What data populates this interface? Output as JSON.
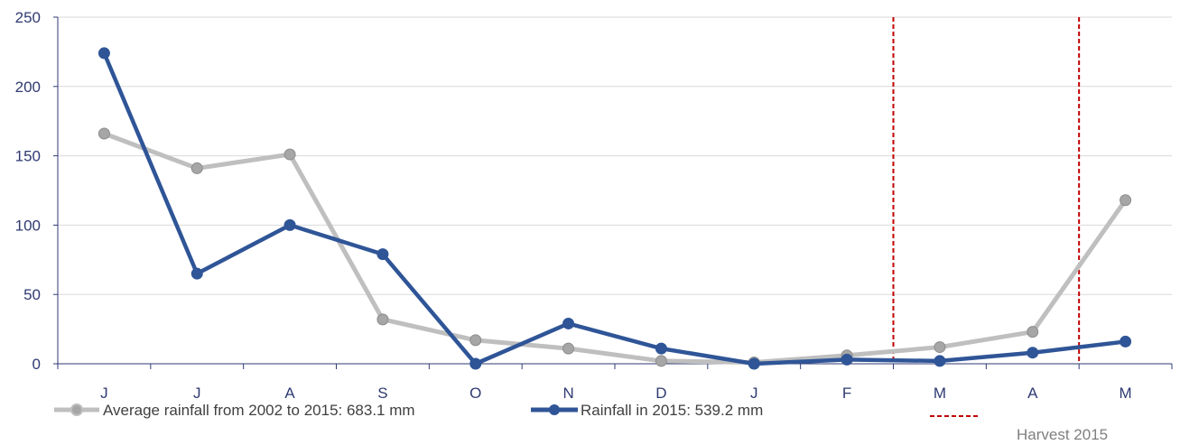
{
  "chart_data": {
    "type": "line",
    "categories": [
      "J",
      "J",
      "A",
      "S",
      "O",
      "N",
      "D",
      "J",
      "F",
      "M",
      "A",
      "M"
    ],
    "ylim": [
      0,
      250
    ],
    "yticks": [
      "0",
      "50",
      "100",
      "150",
      "200",
      "250"
    ],
    "grid": true,
    "legend_position": "bottom",
    "series": [
      {
        "name": "Average rainfall from 2002 to 2015:   683.1 mm",
        "color": "#bfbfbf",
        "marker_color": "#a6a6a6",
        "values": [
          166,
          141,
          151,
          32,
          17,
          11,
          2,
          1,
          6,
          12,
          23,
          118
        ]
      },
      {
        "name": "Rainfall in 2015:   539.2 mm",
        "color": "#2f5597",
        "marker_color": "#2f5597",
        "values": [
          224,
          65,
          100,
          79,
          0,
          29,
          11,
          0,
          3,
          2,
          8,
          16
        ]
      }
    ],
    "harvest": {
      "label": "Harvest 2015",
      "color": "#c00000",
      "start_index": 9,
      "end_index": 11
    }
  }
}
